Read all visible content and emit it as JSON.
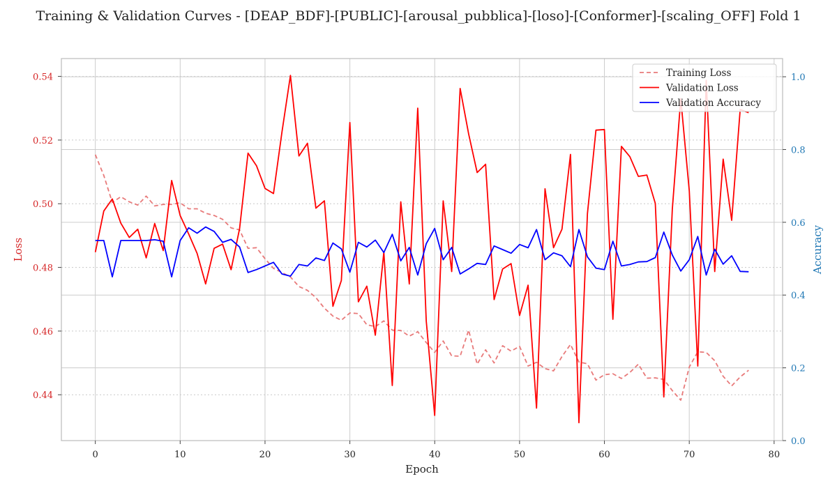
{
  "chart_data": {
    "type": "line",
    "title": "Training & Validation Curves - [DEAP_BDF]-[PUBLIC]-[arousal_pubblica]-[loso]-[Conformer]-[scaling_OFF] Fold 1",
    "xlabel": "Epoch",
    "ylabel_left": "Loss",
    "ylabel_right": "Accuracy",
    "xlim": [
      -4,
      81
    ],
    "ylim_left": [
      0.4256,
      0.5456
    ],
    "ylim_right": [
      0.0,
      1.05
    ],
    "x_ticks": [
      0,
      10,
      20,
      30,
      40,
      50,
      60,
      70,
      80
    ],
    "y_ticks_left": [
      0.44,
      0.46,
      0.48,
      0.5,
      0.52,
      0.54
    ],
    "y_ticks_right": [
      0.0,
      0.2,
      0.4,
      0.6,
      0.8,
      1.0
    ],
    "grid": true,
    "legend_position": "upper right",
    "colors": {
      "train_loss": "#e87a7a",
      "val_loss": "#ff0000",
      "val_acc": "#0000ff",
      "left_axis": "#d62728",
      "right_axis": "#1f77b4"
    },
    "x": [
      0,
      1,
      2,
      3,
      4,
      5,
      6,
      7,
      8,
      9,
      10,
      11,
      12,
      13,
      14,
      15,
      16,
      17,
      18,
      19,
      20,
      21,
      22,
      23,
      24,
      25,
      26,
      27,
      28,
      29,
      30,
      31,
      32,
      33,
      34,
      35,
      36,
      37,
      38,
      39,
      40,
      41,
      42,
      43,
      44,
      45,
      46,
      47,
      48,
      49,
      50,
      51,
      52,
      53,
      54,
      55,
      56,
      57,
      58,
      59,
      60,
      61,
      62,
      63,
      64,
      65,
      66,
      67,
      68,
      69,
      70,
      71,
      72,
      73,
      74,
      75,
      76,
      77
    ],
    "series": [
      {
        "name": "Training Loss",
        "axis": "left",
        "style": "dashed",
        "values": [
          0.5154,
          0.5089,
          0.5004,
          0.5022,
          0.5006,
          0.4996,
          0.5024,
          0.4993,
          0.4998,
          0.4998,
          0.5003,
          0.4984,
          0.4984,
          0.497,
          0.4963,
          0.4951,
          0.4924,
          0.4918,
          0.486,
          0.4862,
          0.4827,
          0.4797,
          0.4784,
          0.477,
          0.474,
          0.4728,
          0.4705,
          0.4672,
          0.4647,
          0.4634,
          0.4657,
          0.4655,
          0.462,
          0.4614,
          0.4632,
          0.4603,
          0.4602,
          0.4584,
          0.4598,
          0.4564,
          0.4533,
          0.4569,
          0.4522,
          0.4521,
          0.4603,
          0.4496,
          0.4541,
          0.45,
          0.4554,
          0.4537,
          0.4552,
          0.449,
          0.4502,
          0.4482,
          0.4475,
          0.452,
          0.4558,
          0.4503,
          0.4497,
          0.4446,
          0.4463,
          0.4466,
          0.4451,
          0.447,
          0.4496,
          0.4452,
          0.4453,
          0.4448,
          0.4413,
          0.4383,
          0.4487,
          0.4535,
          0.4533,
          0.4507,
          0.4458,
          0.4428,
          0.4456,
          0.4477
        ]
      },
      {
        "name": "Validation Loss",
        "axis": "left",
        "style": "solid",
        "values": [
          0.4848,
          0.4977,
          0.5015,
          0.4939,
          0.4894,
          0.492,
          0.483,
          0.4938,
          0.4853,
          0.5073,
          0.4963,
          0.4905,
          0.4844,
          0.4748,
          0.486,
          0.4873,
          0.4793,
          0.4922,
          0.5159,
          0.5119,
          0.5048,
          0.5032,
          0.5226,
          0.5403,
          0.515,
          0.519,
          0.4986,
          0.5009,
          0.4678,
          0.4759,
          0.5255,
          0.4692,
          0.4741,
          0.4587,
          0.4848,
          0.4429,
          0.5006,
          0.4748,
          0.53,
          0.4632,
          0.4335,
          0.5009,
          0.4787,
          0.5362,
          0.5219,
          0.5098,
          0.5124,
          0.4699,
          0.4795,
          0.4812,
          0.4649,
          0.4744,
          0.4358,
          0.5047,
          0.4862,
          0.492,
          0.5155,
          0.4312,
          0.4969,
          0.5231,
          0.5233,
          0.4637,
          0.518,
          0.5148,
          0.5086,
          0.509,
          0.5001,
          0.4393,
          0.4983,
          0.533,
          0.5041,
          0.449,
          0.5388,
          0.4787,
          0.514,
          0.4948,
          0.5296,
          0.5286
        ]
      },
      {
        "name": "Validation Accuracy",
        "axis": "right",
        "style": "solid",
        "values": [
          0.55,
          0.55,
          0.45,
          0.55,
          0.55,
          0.55,
          0.55,
          0.552,
          0.548,
          0.45,
          0.55,
          0.585,
          0.57,
          0.587,
          0.575,
          0.545,
          0.553,
          0.532,
          0.462,
          0.47,
          0.48,
          0.49,
          0.458,
          0.452,
          0.484,
          0.48,
          0.502,
          0.495,
          0.543,
          0.527,
          0.463,
          0.545,
          0.532,
          0.551,
          0.517,
          0.567,
          0.494,
          0.531,
          0.455,
          0.541,
          0.583,
          0.497,
          0.531,
          0.458,
          0.472,
          0.487,
          0.484,
          0.535,
          0.525,
          0.515,
          0.539,
          0.53,
          0.58,
          0.497,
          0.516,
          0.508,
          0.478,
          0.58,
          0.505,
          0.474,
          0.47,
          0.548,
          0.48,
          0.484,
          0.491,
          0.492,
          0.503,
          0.573,
          0.51,
          0.466,
          0.497,
          0.561,
          0.455,
          0.526,
          0.485,
          0.508,
          0.465,
          0.464
        ]
      }
    ]
  }
}
